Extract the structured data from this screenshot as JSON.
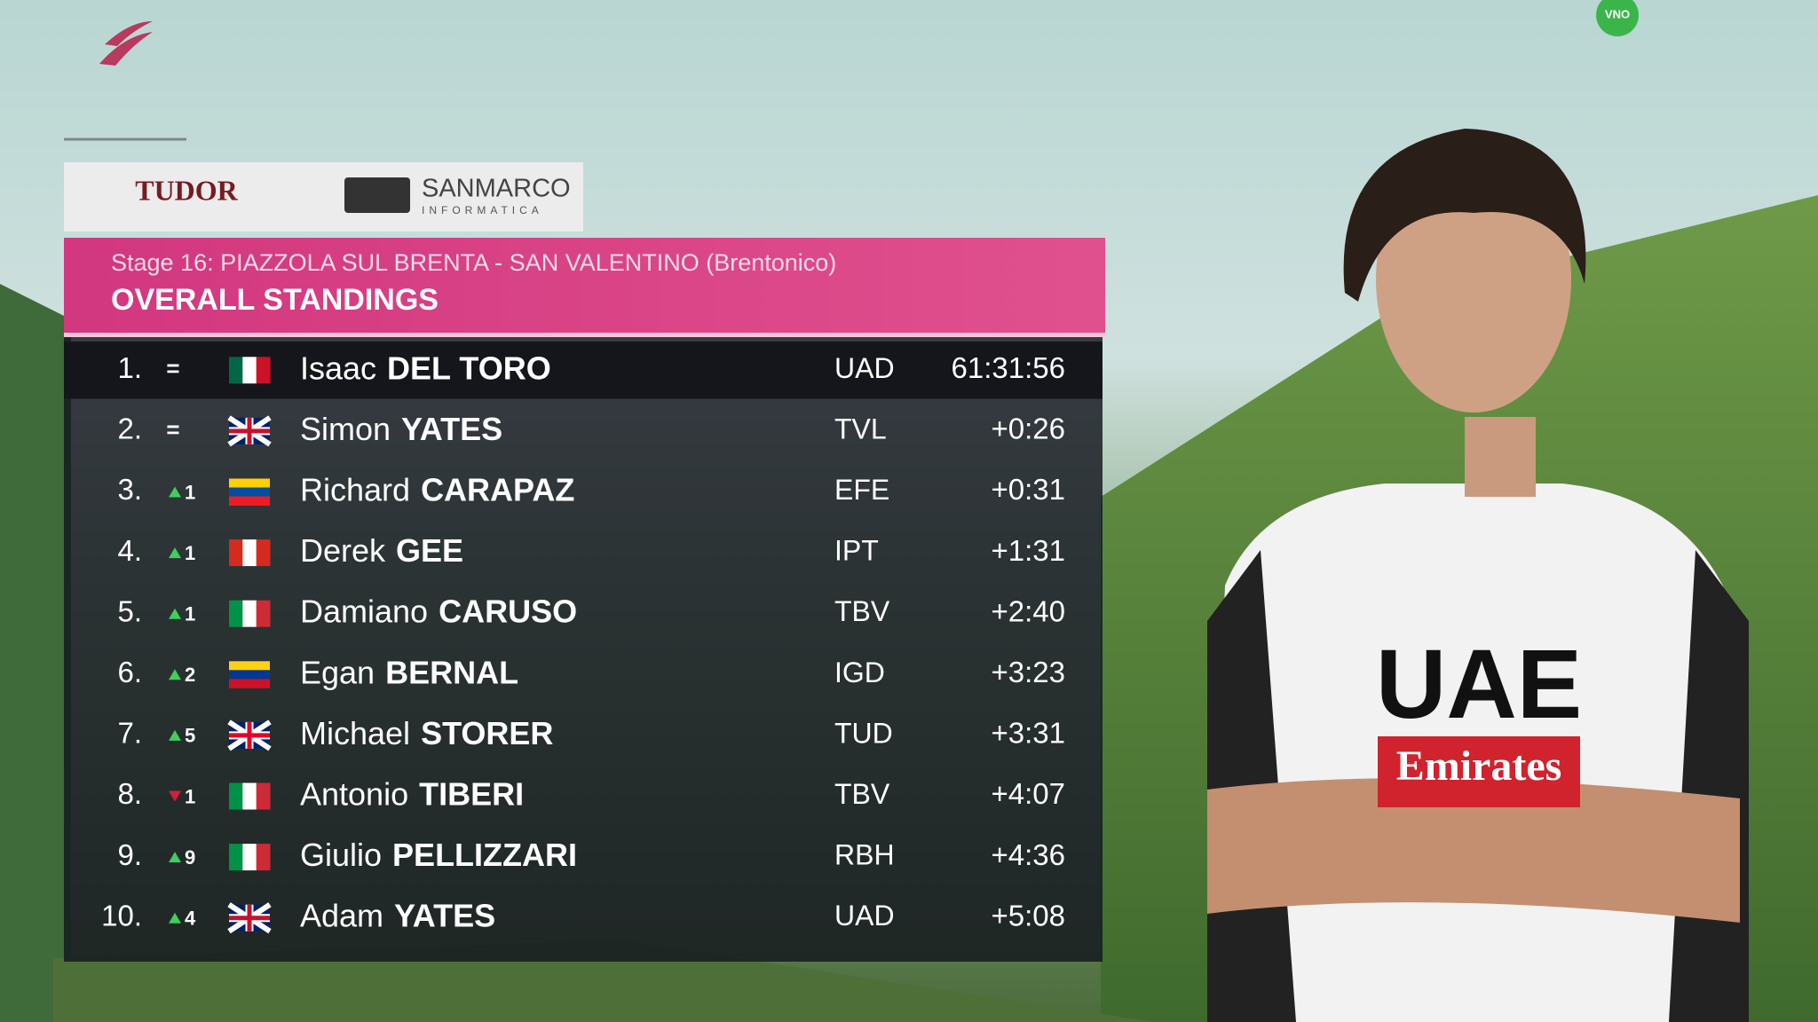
{
  "sponsors": {
    "left": "TUDOR",
    "right": "SANMARCO",
    "right_sub": "INFORMATICA"
  },
  "channel": "VNO",
  "header": {
    "stage": "Stage 16: PIAZZOLA SUL BRENTA - SAN VALENTINO (Brentonico)",
    "title": "OVERALL STANDINGS"
  },
  "rider": {
    "jersey_team": "UAE",
    "jersey_sponsor": "Emirates"
  },
  "table": {
    "rows": [
      {
        "rank": "1.",
        "change": "=",
        "flag": [
          "#006847",
          "#ffffff",
          "#ce1126"
        ],
        "flag_style": "vertical",
        "first": "Isaac",
        "last": "DEL TORO",
        "team": "UAD",
        "time": "61:31:56"
      },
      {
        "rank": "2.",
        "change": "=",
        "flag": [
          "#012169",
          "#ffffff",
          "#c8102e"
        ],
        "flag_style": "union",
        "first": "Simon",
        "last": "YATES",
        "team": "TVL",
        "time": "+0:26"
      },
      {
        "rank": "3.",
        "change": "1",
        "trend": "up",
        "flag": [
          "#ffd100",
          "#034ea2",
          "#ed1c24"
        ],
        "flag_style": "horizontal",
        "first": "Richard",
        "last": "CARAPAZ",
        "team": "EFE",
        "time": "+0:31"
      },
      {
        "rank": "4.",
        "change": "1",
        "trend": "up",
        "flag": [
          "#d52b1e",
          "#ffffff",
          "#d52b1e"
        ],
        "flag_style": "vertical",
        "first": "Derek",
        "last": "GEE",
        "team": "IPT",
        "time": "+1:31"
      },
      {
        "rank": "5.",
        "change": "1",
        "trend": "up",
        "flag": [
          "#009246",
          "#ffffff",
          "#ce2b37"
        ],
        "flag_style": "vertical",
        "first": "Damiano",
        "last": "CARUSO",
        "team": "TBV",
        "time": "+2:40"
      },
      {
        "rank": "6.",
        "change": "2",
        "trend": "up",
        "flag": [
          "#fcd116",
          "#003893",
          "#ce1126"
        ],
        "flag_style": "horizontal",
        "first": "Egan",
        "last": "BERNAL",
        "team": "IGD",
        "time": "+3:23"
      },
      {
        "rank": "7.",
        "change": "5",
        "trend": "up",
        "flag": [
          "#012169",
          "#ffffff",
          "#e4002b"
        ],
        "flag_style": "union",
        "first": "Michael",
        "last": "STORER",
        "team": "TUD",
        "time": "+3:31"
      },
      {
        "rank": "8.",
        "change": "1",
        "trend": "down",
        "flag": [
          "#009246",
          "#ffffff",
          "#ce2b37"
        ],
        "flag_style": "vertical",
        "first": "Antonio",
        "last": "TIBERI",
        "team": "TBV",
        "time": "+4:07"
      },
      {
        "rank": "9.",
        "change": "9",
        "trend": "up",
        "flag": [
          "#009246",
          "#ffffff",
          "#ce2b37"
        ],
        "flag_style": "vertical",
        "first": "Giulio",
        "last": "PELLIZZARI",
        "team": "RBH",
        "time": "+4:36"
      },
      {
        "rank": "10.",
        "change": "4",
        "trend": "up",
        "flag": [
          "#012169",
          "#ffffff",
          "#c8102e"
        ],
        "flag_style": "union",
        "first": "Adam",
        "last": "YATES",
        "team": "UAD",
        "time": "+5:08"
      }
    ]
  }
}
